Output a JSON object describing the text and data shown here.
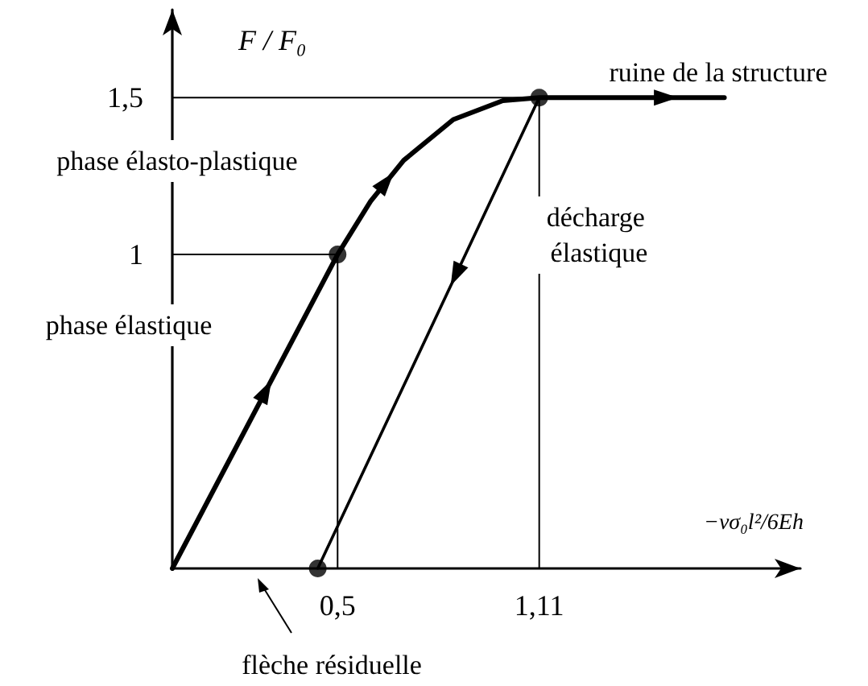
{
  "chart_data": {
    "type": "line",
    "xlabel": "−νσ₀l²/6Eh",
    "ylabel": "F / F₀",
    "xlim": [
      0,
      1.9
    ],
    "ylim": [
      0,
      1.78
    ],
    "xticks": [
      {
        "value": 0.5,
        "label": "0,5"
      },
      {
        "value": 1.11,
        "label": "1,11"
      }
    ],
    "yticks": [
      {
        "value": 1,
        "label": "1"
      },
      {
        "value": 1.5,
        "label": "1,5"
      }
    ],
    "grid": false,
    "line_style": "solid",
    "series": [
      {
        "color": "#000000",
        "x": [
          0,
          0.5,
          0.6,
          0.7,
          0.85,
          1.0,
          1.11,
          1.67
        ],
        "values": [
          0,
          1,
          1.17,
          1.3,
          1.43,
          1.49,
          1.5,
          1.5
        ]
      },
      {
        "color": "#000000",
        "x": [
          1.11,
          0.44
        ],
        "values": [
          1.5,
          0
        ]
      },
      {
        "color": "#000000",
        "x": [
          0,
          0.5,
          0.5
        ],
        "values": [
          1,
          1,
          0
        ]
      },
      {
        "color": "#000000",
        "x": [
          0,
          1.11,
          1.11
        ],
        "values": [
          1.5,
          1.5,
          0
        ]
      },
      {
        "type": "scatter",
        "color": "#000000",
        "marker": "circle",
        "x": [
          0.5,
          1.11,
          0.44
        ],
        "values": [
          1,
          1.5,
          0
        ]
      }
    ],
    "annotations": [
      "phase élastique",
      "phase élasto-plastique",
      "ruine de la structure",
      "décharge élastique",
      "flèche résiduelle"
    ]
  }
}
